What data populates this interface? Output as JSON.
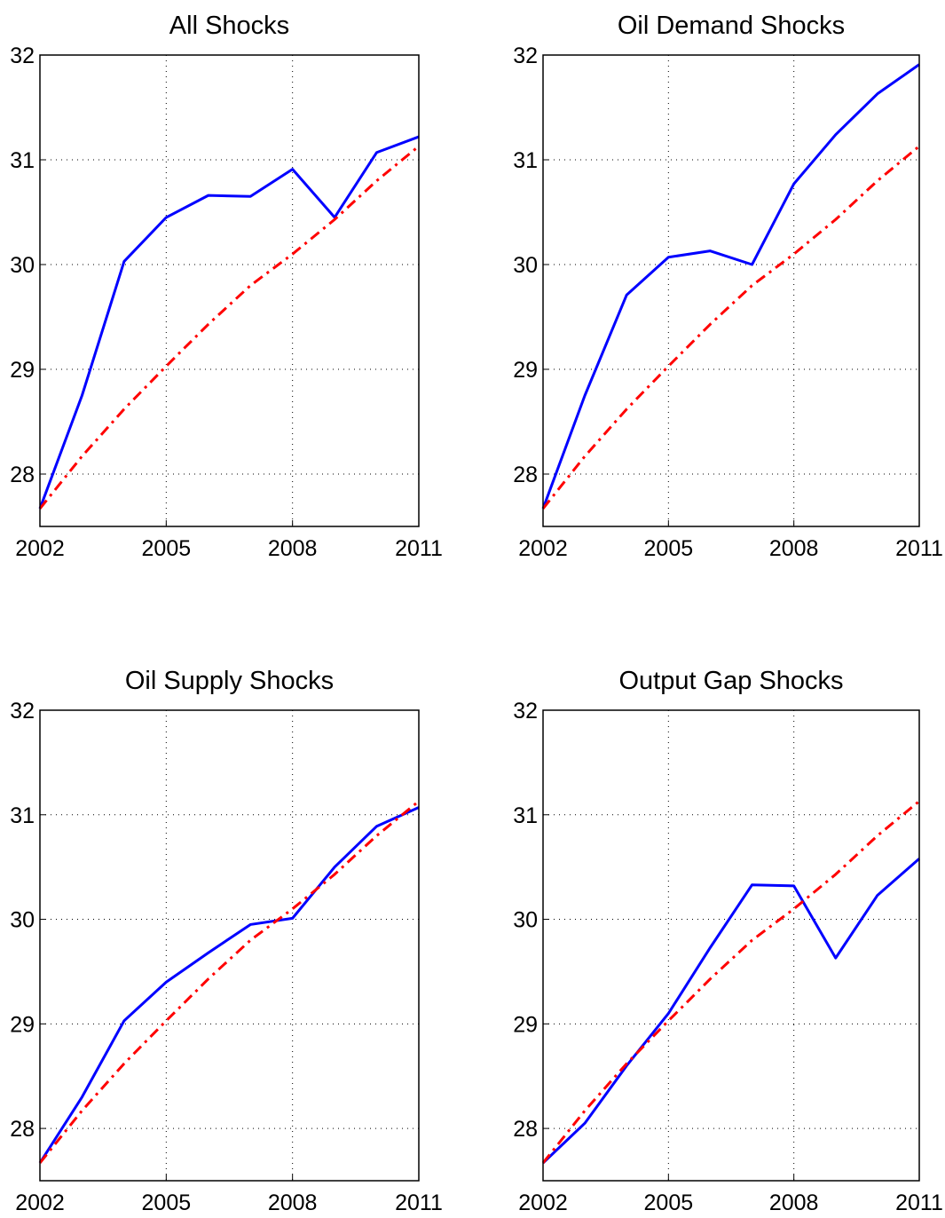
{
  "chart_data": [
    {
      "type": "line",
      "title": "All Shocks",
      "x": [
        2002,
        2003,
        2004,
        2005,
        2006,
        2007,
        2008,
        2009,
        2010,
        2011
      ],
      "series": [
        {
          "color": "#0000ff",
          "style": "solid",
          "values": [
            27.67,
            28.75,
            30.03,
            30.45,
            30.66,
            30.65,
            30.91,
            30.45,
            31.07,
            31.22
          ]
        },
        {
          "color": "#ff0000",
          "style": "dashdot",
          "values": [
            27.67,
            28.17,
            28.62,
            29.03,
            29.43,
            29.8,
            30.1,
            30.43,
            30.8,
            31.13
          ]
        }
      ],
      "xlim": [
        2002,
        2011
      ],
      "xticks": [
        2002,
        2005,
        2008,
        2011
      ],
      "ylim": [
        27.5,
        32
      ],
      "yticks": [
        28,
        29,
        30,
        31,
        32
      ],
      "grid": true
    },
    {
      "type": "line",
      "title": "Oil Demand Shocks",
      "x": [
        2002,
        2003,
        2004,
        2005,
        2006,
        2007,
        2008,
        2009,
        2010,
        2011
      ],
      "series": [
        {
          "color": "#0000ff",
          "style": "solid",
          "values": [
            27.67,
            28.75,
            29.71,
            30.07,
            30.13,
            30.0,
            30.77,
            31.24,
            31.63,
            31.91
          ]
        },
        {
          "color": "#ff0000",
          "style": "dashdot",
          "values": [
            27.67,
            28.17,
            28.62,
            29.03,
            29.43,
            29.8,
            30.1,
            30.43,
            30.8,
            31.13
          ]
        }
      ],
      "xlim": [
        2002,
        2011
      ],
      "xticks": [
        2002,
        2005,
        2008,
        2011
      ],
      "ylim": [
        27.5,
        32
      ],
      "yticks": [
        28,
        29,
        30,
        31,
        32
      ],
      "grid": true
    },
    {
      "type": "line",
      "title": "Oil Supply Shocks",
      "x": [
        2002,
        2003,
        2004,
        2005,
        2006,
        2007,
        2008,
        2009,
        2010,
        2011
      ],
      "series": [
        {
          "color": "#0000ff",
          "style": "solid",
          "values": [
            27.67,
            28.3,
            29.03,
            29.4,
            29.68,
            29.95,
            30.01,
            30.5,
            30.89,
            31.07
          ]
        },
        {
          "color": "#ff0000",
          "style": "dashdot",
          "values": [
            27.67,
            28.17,
            28.62,
            29.03,
            29.43,
            29.8,
            30.1,
            30.43,
            30.8,
            31.13
          ]
        }
      ],
      "xlim": [
        2002,
        2011
      ],
      "xticks": [
        2002,
        2005,
        2008,
        2011
      ],
      "ylim": [
        27.5,
        32
      ],
      "yticks": [
        28,
        29,
        30,
        31,
        32
      ],
      "grid": true
    },
    {
      "type": "line",
      "title": "Output Gap Shocks",
      "x": [
        2002,
        2003,
        2004,
        2005,
        2006,
        2007,
        2008,
        2009,
        2010,
        2011
      ],
      "series": [
        {
          "color": "#0000ff",
          "style": "solid",
          "values": [
            27.67,
            28.05,
            28.6,
            29.1,
            29.73,
            30.33,
            30.32,
            29.63,
            30.23,
            30.58
          ]
        },
        {
          "color": "#ff0000",
          "style": "dashdot",
          "values": [
            27.67,
            28.17,
            28.62,
            29.03,
            29.43,
            29.8,
            30.1,
            30.43,
            30.8,
            31.13
          ]
        }
      ],
      "xlim": [
        2002,
        2011
      ],
      "xticks": [
        2002,
        2005,
        2008,
        2011
      ],
      "ylim": [
        27.5,
        32
      ],
      "yticks": [
        28,
        29,
        30,
        31,
        32
      ],
      "grid": true
    }
  ]
}
